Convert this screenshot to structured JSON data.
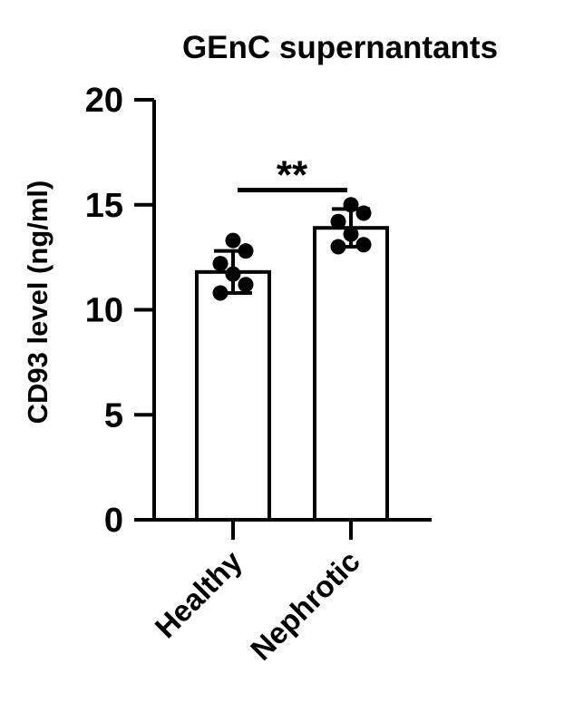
{
  "chart_data": {
    "type": "bar",
    "title": "GEnC supernantants",
    "ylabel": "CD93 level (ng/ml)",
    "xlabel": "",
    "ylim": [
      0,
      20
    ],
    "yticks": [
      "0",
      "5",
      "10",
      "15",
      "20"
    ],
    "grid": false,
    "categories": [
      "Healthy",
      "Nephrotic"
    ],
    "values": [
      11.8,
      13.9
    ],
    "error": [
      1.0,
      0.9
    ],
    "points": [
      [
        13.3,
        12.8,
        12.2,
        11.7,
        11.2,
        10.8
      ],
      [
        15.0,
        14.6,
        14.2,
        13.6,
        13.1,
        13.0
      ]
    ],
    "significance": {
      "label": "**",
      "between": [
        "Healthy",
        "Nephrotic"
      ],
      "y": 15.7
    },
    "colors": {
      "bar_fill": "#ffffff",
      "stroke": "#000000",
      "points": "#000000"
    }
  }
}
